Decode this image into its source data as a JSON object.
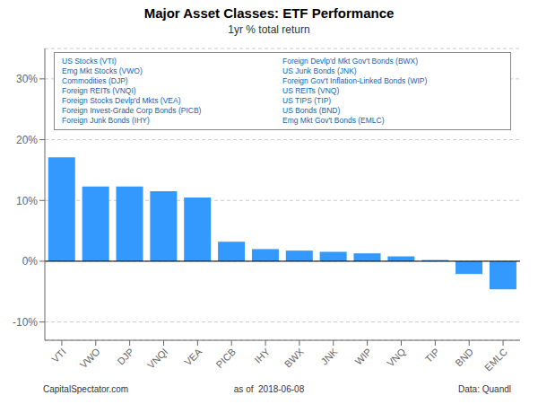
{
  "chart_data": {
    "type": "bar",
    "title": "Major Asset Classes: ETF Performance",
    "subtitle": "1yr % total return",
    "categories": [
      "VTI",
      "VWO",
      "DJP",
      "VNQI",
      "VEA",
      "PICB",
      "IHY",
      "BWX",
      "JNK",
      "WIP",
      "VNQ",
      "TIP",
      "BND",
      "EMLC"
    ],
    "values": [
      17.1,
      12.3,
      12.3,
      11.5,
      10.5,
      3.2,
      2.0,
      1.75,
      1.55,
      1.3,
      0.8,
      0.2,
      -2.1,
      -4.6
    ],
    "color": "#3399FF",
    "ylim": [
      -13,
      35
    ],
    "yticks": [
      {
        "value": -10,
        "label": "-10%"
      },
      {
        "value": 0,
        "label": "0%"
      },
      {
        "value": 10,
        "label": "10%"
      },
      {
        "value": 20,
        "label": "20%"
      },
      {
        "value": 30,
        "label": "30%"
      }
    ],
    "grid": true,
    "annotations": [
      "US Stocks (VTI)",
      "Emg Mkt Stocks (VWO)",
      "Commodities (DJP)",
      "Foreign REITs (VNQI)",
      "Foreign Stocks Devlp'd Mkts (VEA)",
      "Foreign Invest-Grade Corp Bonds (PICB)",
      "Foreign Junk Bonds (IHY)",
      "Foreign Devlp'd Mkt Gov't Bonds (BWX)",
      "US Junk Bonds (JNK)",
      "Foreign Gov't Inflation-Linked Bonds (WIP)",
      "US REITs (VNQ)",
      "US TIPS (TIP)",
      "US Bonds (BND)",
      "Emg Mkt Gov't Bonds (EMLC)"
    ],
    "footer": [
      "CapitalSpectator.com",
      "as of  2018-06-08",
      "Data: Quandl"
    ]
  }
}
